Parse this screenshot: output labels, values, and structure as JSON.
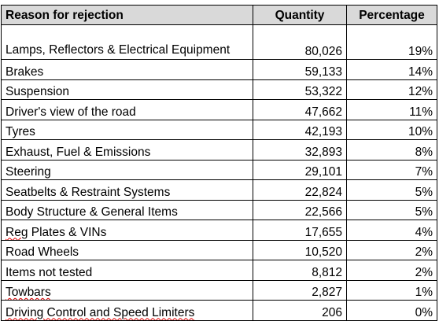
{
  "table": {
    "headers": {
      "reason": "Reason for rejection",
      "quantity": "Quantity",
      "percentage": "Percentage"
    },
    "rows": [
      {
        "reason": "Lamps, Reflectors & Electrical Equipment",
        "quantity": "80,026",
        "percentage": "19%"
      },
      {
        "reason": "Brakes",
        "quantity": "59,133",
        "percentage": "14%"
      },
      {
        "reason": "Suspension",
        "quantity": "53,322",
        "percentage": "12%"
      },
      {
        "reason": "Driver's view of the road",
        "quantity": "47,662",
        "percentage": "11%"
      },
      {
        "reason": "Tyres",
        "quantity": "42,193",
        "percentage": "10%"
      },
      {
        "reason": "Exhaust, Fuel & Emissions",
        "quantity": "32,893",
        "percentage": "8%"
      },
      {
        "reason": "Steering",
        "quantity": "29,101",
        "percentage": "7%"
      },
      {
        "reason": "Seatbelts & Restraint Systems",
        "quantity": "22,824",
        "percentage": "5%"
      },
      {
        "reason": "Body Structure & General Items",
        "quantity": "22,566",
        "percentage": "5%"
      },
      {
        "reason_parts": [
          "Reg",
          " Plates & VINs"
        ],
        "quantity": "17,655",
        "percentage": "4%"
      },
      {
        "reason": "Road Wheels",
        "quantity": "10,520",
        "percentage": "2%"
      },
      {
        "reason": "Items not tested",
        "quantity": "8,812",
        "percentage": "2%"
      },
      {
        "reason_parts": [
          "Towbars"
        ],
        "quantity": "2,827",
        "percentage": "1%"
      },
      {
        "reason_parts": [
          "Driving Control and Speed Limiters"
        ],
        "quantity": "206",
        "percentage": "0%"
      }
    ]
  }
}
